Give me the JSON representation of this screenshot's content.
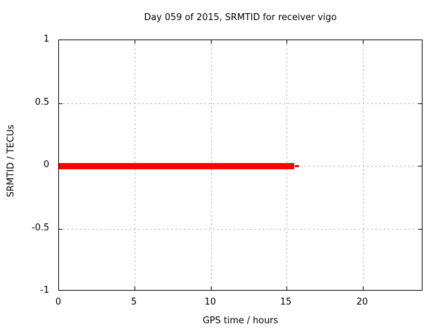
{
  "chart_data": {
    "type": "line",
    "title": "Day 059 of 2015, SRMTID for receiver vigo",
    "xlabel": "GPS time / hours",
    "ylabel": "SRMTID / TECUs",
    "xlim": [
      0,
      24
    ],
    "ylim": [
      -1,
      1
    ],
    "x_ticks": [
      0,
      5,
      10,
      15,
      20
    ],
    "x_tick_labels": [
      "0",
      "5",
      "10",
      "15",
      "20"
    ],
    "y_ticks": [
      1,
      0.5,
      0,
      -0.5,
      -1
    ],
    "y_tick_labels": [
      "1",
      "0.5",
      "0",
      "-0.5",
      "-1"
    ],
    "grid": "dashed, at every tick, inward black tick marks on all four borders",
    "legend": "none",
    "series": [
      {
        "name": "SRMTID",
        "color": "#ff0000",
        "style": "thick solid line (~9px) with thin 3px tail at the end",
        "x": [
          0,
          15.5
        ],
        "y": [
          0,
          0
        ],
        "tail_x": [
          15.5,
          15.75
        ],
        "tail_y": [
          0,
          0
        ]
      }
    ]
  },
  "colors": {
    "background": "#ffffff",
    "text": "#000000",
    "axis_border": "#000000",
    "grid": "#a6a6a6",
    "series_red": "#ff0000"
  }
}
